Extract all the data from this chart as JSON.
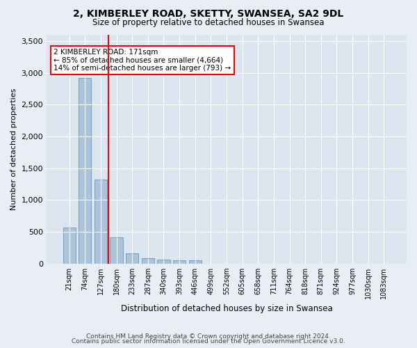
{
  "title1": "2, KIMBERLEY ROAD, SKETTY, SWANSEA, SA2 9DL",
  "title2": "Size of property relative to detached houses in Swansea",
  "xlabel": "Distribution of detached houses by size in Swansea",
  "ylabel": "Number of detached properties",
  "categories": [
    "21sqm",
    "74sqm",
    "127sqm",
    "180sqm",
    "233sqm",
    "287sqm",
    "340sqm",
    "393sqm",
    "446sqm",
    "499sqm",
    "552sqm",
    "605sqm",
    "658sqm",
    "711sqm",
    "764sqm",
    "818sqm",
    "871sqm",
    "924sqm",
    "977sqm",
    "1030sqm",
    "1083sqm"
  ],
  "values": [
    570,
    2920,
    1320,
    410,
    155,
    80,
    60,
    50,
    45,
    0,
    0,
    0,
    0,
    0,
    0,
    0,
    0,
    0,
    0,
    0,
    0
  ],
  "bar_color": "#aac4dd",
  "bar_edge_color": "#5588aa",
  "highlight_index": 2,
  "red_line_x": 2.5,
  "annotation_text": "2 KIMBERLEY ROAD: 171sqm\n← 85% of detached houses are smaller (4,664)\n14% of semi-detached houses are larger (793) →",
  "ylim": [
    0,
    3600
  ],
  "yticks": [
    0,
    500,
    1000,
    1500,
    2000,
    2500,
    3000,
    3500
  ],
  "footnote1": "Contains HM Land Registry data © Crown copyright and database right 2024.",
  "footnote2": "Contains public sector information licensed under the Open Government Licence v3.0.",
  "bg_color": "#e8eef4",
  "plot_bg_color": "#dce6f0"
}
